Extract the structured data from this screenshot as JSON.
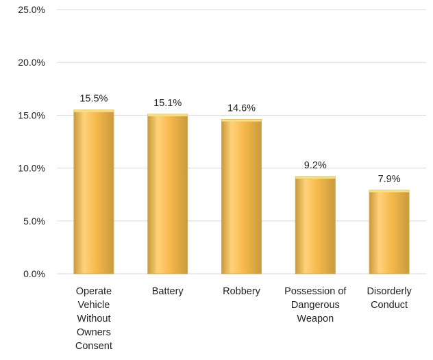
{
  "chart_data": {
    "type": "bar",
    "categories": [
      "Operate Vehicle Without Owners Consent",
      "Battery",
      "Robbery",
      "Possession of Dangerous Weapon",
      "Disorderly Conduct"
    ],
    "category_lines": [
      [
        "Operate",
        "Vehicle",
        "Without",
        "Owners",
        "Consent"
      ],
      [
        "Battery"
      ],
      [
        "Robbery"
      ],
      [
        "Possession of",
        "Dangerous",
        "Weapon"
      ],
      [
        "Disorderly",
        "Conduct"
      ]
    ],
    "values": [
      15.5,
      15.1,
      14.6,
      9.2,
      7.9
    ],
    "data_labels": [
      "15.5%",
      "15.1%",
      "14.6%",
      "9.2%",
      "7.9%"
    ],
    "y_ticks": [
      0,
      5,
      10,
      15,
      20,
      25
    ],
    "y_tick_labels": [
      "0.0%",
      "5.0%",
      "10.0%",
      "15.0%",
      "20.0%",
      "25.0%"
    ],
    "ylim": [
      0,
      25
    ],
    "grid": true,
    "title": "",
    "xlabel": "",
    "ylabel": "",
    "colors": {
      "bar_light": "#ffd27a",
      "bar_mid": "#f7b94c",
      "bar_dark": "#c99a3c",
      "bar_edge": "#d6a84a",
      "bar_top": "#f3e08a"
    }
  }
}
